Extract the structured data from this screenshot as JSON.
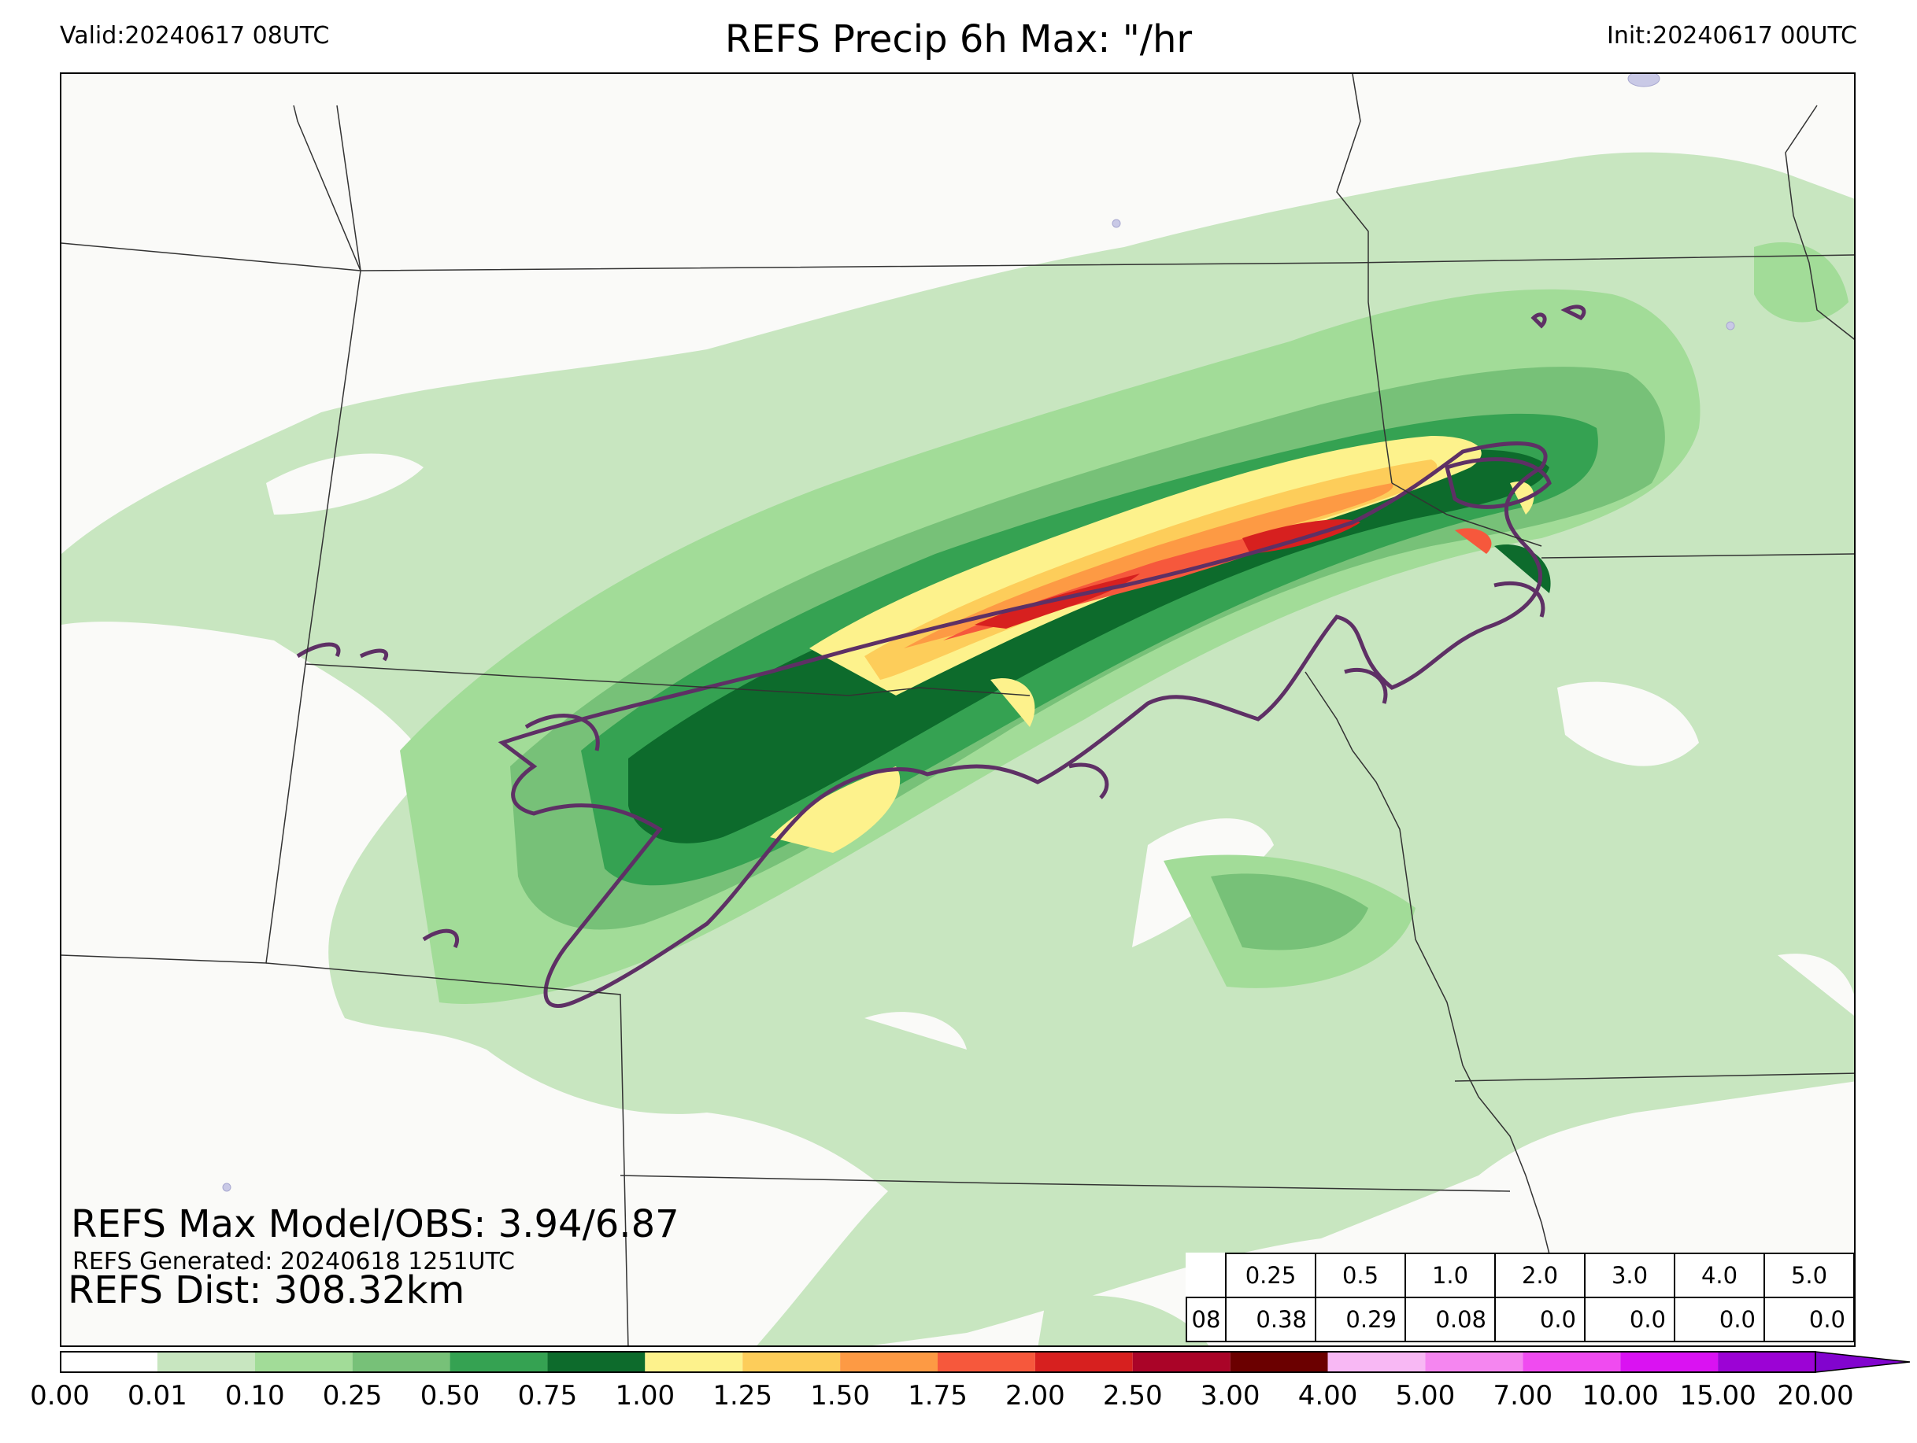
{
  "header": {
    "valid": "Valid:20240617 08UTC",
    "title": "REFS Precip 6h Max: \"/hr",
    "init": "Init:20240617 00UTC"
  },
  "stats": {
    "max_model_obs": "REFS Max Model/OBS: 3.94/6.87",
    "generated": "REFS Generated: 20240618 1251UTC",
    "distance": "REFS Dist: 308.32km"
  },
  "threshold_table": {
    "hour": "08",
    "thresholds": [
      "0.25",
      "0.5",
      "1.0",
      "2.0",
      "3.0",
      "4.0",
      "5.0"
    ],
    "values": [
      "0.38",
      "0.29",
      "0.08",
      "0.0",
      "0.0",
      "0.0",
      "0.0"
    ]
  },
  "colorbar": {
    "ticks": [
      "0.00",
      "0.01",
      "0.10",
      "0.25",
      "0.50",
      "0.75",
      "1.00",
      "1.25",
      "1.50",
      "1.75",
      "2.00",
      "2.50",
      "3.00",
      "4.00",
      "5.00",
      "7.00",
      "10.00",
      "15.00",
      "20.00"
    ],
    "colors": [
      "#ffffff",
      "#c8e6c0",
      "#a2dc98",
      "#77c178",
      "#35a252",
      "#0d6b2c",
      "#fdf28c",
      "#fdcd5a",
      "#fd9a44",
      "#f6583c",
      "#d7201f",
      "#aa0428",
      "#6b0000",
      "#f8b8f4",
      "#f586f0",
      "#f04bf0",
      "#da12f2",
      "#9c03d5"
    ],
    "extend_color": "#8204ce"
  },
  "map_colors": {
    "background": "#fafaf8",
    "obs_contour": "#5e3065",
    "boundary": "#333333",
    "water": "#c9c9e6"
  }
}
